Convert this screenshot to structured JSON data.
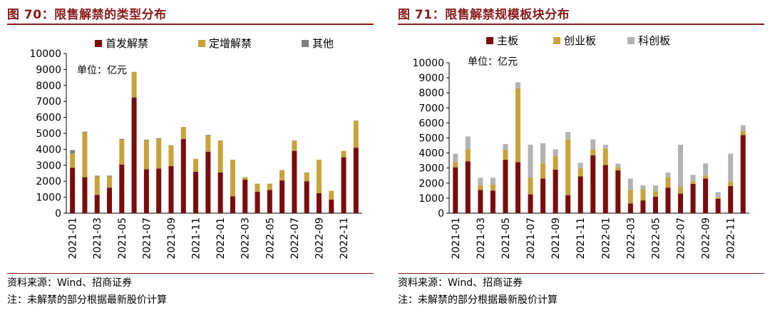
{
  "left": {
    "title": "图 70：限售解禁的类型分布",
    "source": "资料来源：Wind、招商证券",
    "note": "注：未解禁的部分根据最新股价计算",
    "chart_data": {
      "type": "bar",
      "stacked": true,
      "unit_label": "单位：亿元",
      "ylim": [
        0,
        10000
      ],
      "yticks": [
        0,
        1000,
        2000,
        3000,
        4000,
        5000,
        6000,
        7000,
        8000,
        9000,
        10000
      ],
      "legend_position": "top",
      "categories": [
        "2021-01",
        "2021-02",
        "2021-03",
        "2021-04",
        "2021-05",
        "2021-06",
        "2021-07",
        "2021-08",
        "2021-09",
        "2021-10",
        "2021-11",
        "2021-12",
        "2022-01",
        "2022-02",
        "2022-03",
        "2022-04",
        "2022-05",
        "2022-06",
        "2022-07",
        "2022-08",
        "2022-09",
        "2022-10",
        "2022-11",
        "2022-12"
      ],
      "tick_labels": [
        "2021-01",
        "2021-03",
        "2021-05",
        "2021-07",
        "2021-09",
        "2021-11",
        "2022-01",
        "2022-03",
        "2022-05",
        "2022-07",
        "2022-09",
        "2022-11"
      ],
      "series": [
        {
          "name": "首发解禁",
          "color": "#7b0c0c",
          "values": [
            2850,
            2250,
            1150,
            1600,
            3050,
            7250,
            2750,
            2800,
            2950,
            4650,
            2600,
            3850,
            2550,
            1050,
            2100,
            1350,
            1450,
            2050,
            3900,
            2000,
            1250,
            850,
            3500,
            4100
          ]
        },
        {
          "name": "定增解禁",
          "color": "#c9a23a",
          "values": [
            900,
            2800,
            1150,
            700,
            1550,
            1600,
            1800,
            1850,
            1300,
            750,
            800,
            1000,
            2000,
            2300,
            150,
            500,
            400,
            650,
            650,
            550,
            2100,
            550,
            400,
            1700
          ]
        },
        {
          "name": "其他",
          "color": "#7f7f7f",
          "values": [
            200,
            50,
            50,
            50,
            50,
            0,
            50,
            50,
            0,
            0,
            0,
            50,
            0,
            0,
            0,
            0,
            0,
            0,
            0,
            0,
            0,
            0,
            0,
            0
          ]
        }
      ]
    }
  },
  "right": {
    "title": "图 71：限售解禁规模板块分布",
    "source": "资料来源：Wind、招商证券",
    "note": "注：未解禁的部分根据最新股价计算",
    "chart_data": {
      "type": "bar",
      "stacked": true,
      "unit_label": "单位：亿元",
      "ylim": [
        0,
        10000
      ],
      "yticks": [
        0,
        1000,
        2000,
        3000,
        4000,
        5000,
        6000,
        7000,
        8000,
        9000,
        10000
      ],
      "legend_position": "top",
      "categories": [
        "2021-01",
        "2021-02",
        "2021-03",
        "2021-04",
        "2021-05",
        "2021-06",
        "2021-07",
        "2021-08",
        "2021-09",
        "2021-10",
        "2021-11",
        "2021-12",
        "2022-01",
        "2022-02",
        "2022-03",
        "2022-04",
        "2022-05",
        "2022-06",
        "2022-07",
        "2022-08",
        "2022-09",
        "2022-10",
        "2022-11",
        "2022-12"
      ],
      "tick_labels": [
        "2021-01",
        "2021-03",
        "2021-05",
        "2021-07",
        "2021-09",
        "2021-11",
        "2022-01",
        "2022-03",
        "2022-05",
        "2022-07",
        "2022-09",
        "2022-11"
      ],
      "series": [
        {
          "name": "主板",
          "color": "#7b0c0c",
          "values": [
            3050,
            3450,
            1550,
            1500,
            3550,
            3400,
            1250,
            2300,
            2900,
            1200,
            2450,
            3850,
            3200,
            2850,
            650,
            850,
            1100,
            1700,
            1300,
            1950,
            2300,
            950,
            1800,
            5200
          ]
        },
        {
          "name": "创业板",
          "color": "#c9a23a",
          "values": [
            350,
            800,
            300,
            400,
            650,
            4900,
            1100,
            1000,
            900,
            3700,
            550,
            400,
            1100,
            200,
            900,
            750,
            350,
            700,
            450,
            150,
            200,
            100,
            300,
            250
          ]
        },
        {
          "name": "科创板",
          "color": "#b3b3b3",
          "values": [
            550,
            850,
            500,
            450,
            400,
            400,
            2200,
            1350,
            450,
            500,
            350,
            650,
            250,
            250,
            750,
            250,
            400,
            300,
            2800,
            450,
            800,
            350,
            1850,
            400
          ]
        }
      ]
    }
  }
}
